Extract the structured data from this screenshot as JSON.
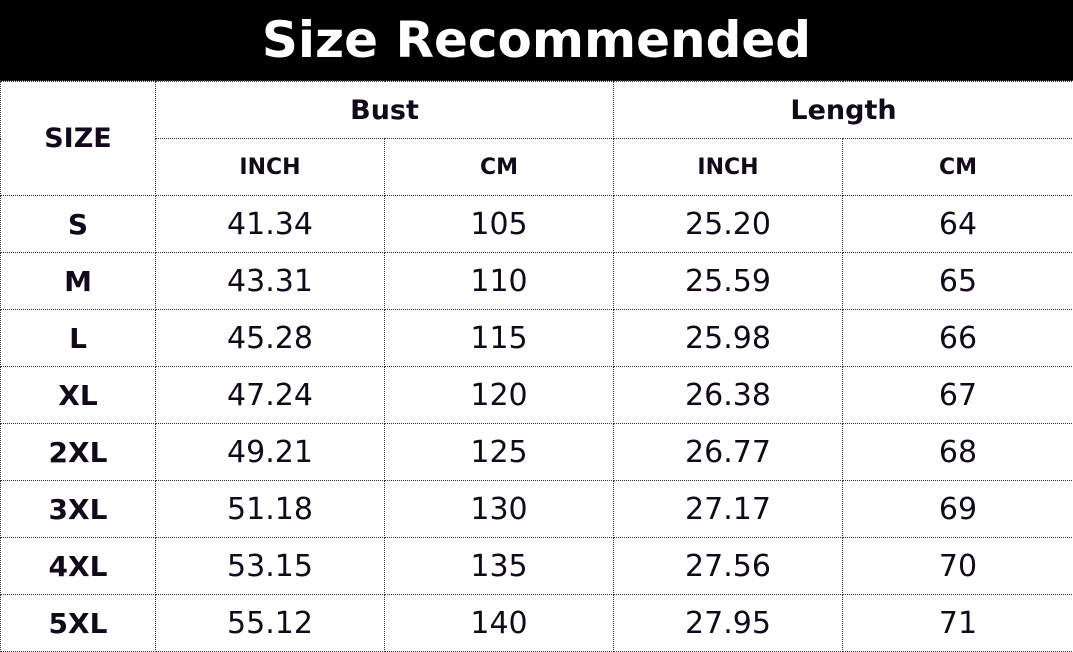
{
  "title": "Size Recommended",
  "headers": {
    "size": "SIZE",
    "bust": "Bust",
    "length": "Length",
    "sub": [
      "INCH",
      "CM",
      "INCH",
      "CM"
    ]
  },
  "rows": [
    {
      "size": "S",
      "values": [
        "41.34",
        "105",
        "25.20",
        "64"
      ]
    },
    {
      "size": "M",
      "values": [
        "43.31",
        "110",
        "25.59",
        "65"
      ]
    },
    {
      "size": "L",
      "values": [
        "45.28",
        "115",
        "25.98",
        "66"
      ]
    },
    {
      "size": "XL",
      "values": [
        "47.24",
        "120",
        "26.38",
        "67"
      ]
    },
    {
      "size": "2XL",
      "values": [
        "49.21",
        "125",
        "26.77",
        "68"
      ]
    },
    {
      "size": "3XL",
      "values": [
        "51.18",
        "130",
        "27.17",
        "69"
      ]
    },
    {
      "size": "4XL",
      "values": [
        "53.15",
        "135",
        "27.56",
        "70"
      ]
    },
    {
      "size": "5XL",
      "values": [
        "55.12",
        "140",
        "27.95",
        "71"
      ]
    }
  ]
}
